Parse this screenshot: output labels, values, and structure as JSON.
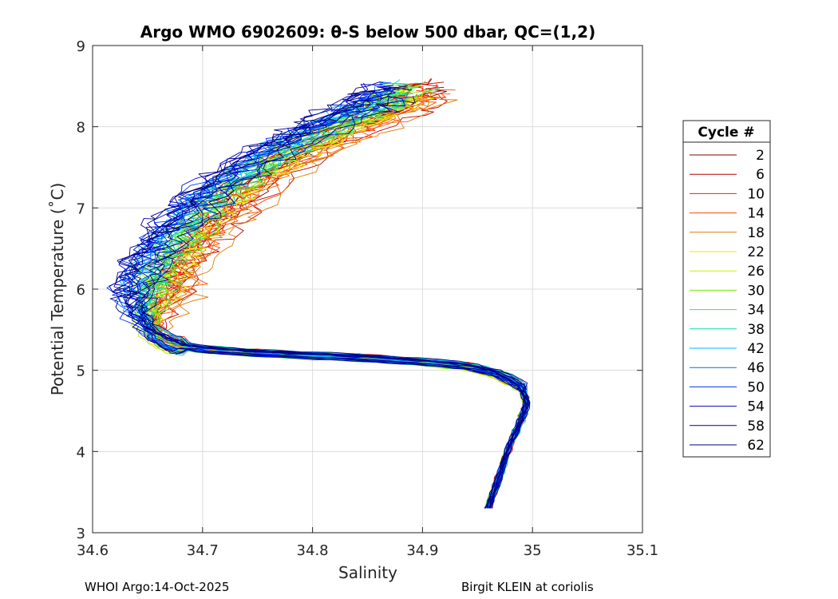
{
  "chart_data": {
    "type": "line",
    "title": "Argo WMO 6902609: θ-S below 500 dbar,  QC=(1,2)",
    "xlabel": "Salinity",
    "ylabel": "Potential Temperature (˚C)",
    "xlim": [
      34.6,
      35.1
    ],
    "ylim": [
      3,
      9
    ],
    "xticks": [
      "34.6",
      "34.7",
      "34.8",
      "34.9",
      "35",
      "35.1"
    ],
    "yticks": [
      "3",
      "4",
      "5",
      "6",
      "7",
      "8",
      "9"
    ],
    "grid": true,
    "legend": {
      "title": "Cycle #",
      "position": "right",
      "entries": [
        {
          "label": "2",
          "color": "#7f0000"
        },
        {
          "label": "6",
          "color": "#c00000"
        },
        {
          "label": "10",
          "color": "#ff1a00"
        },
        {
          "label": "14",
          "color": "#ff4a00"
        },
        {
          "label": "18",
          "color": "#e07800"
        },
        {
          "label": "22",
          "color": "#e8e800"
        },
        {
          "label": "26",
          "color": "#c4f000"
        },
        {
          "label": "30",
          "color": "#7ae600"
        },
        {
          "label": "34",
          "color": "#30e860"
        },
        {
          "label": "38",
          "color": "#00e0b0"
        },
        {
          "label": "42",
          "color": "#00b4ff"
        },
        {
          "label": "46",
          "color": "#0070ff"
        },
        {
          "label": "50",
          "color": "#0030ff"
        },
        {
          "label": "54",
          "color": "#0000d0"
        },
        {
          "label": "58",
          "color": "#000090"
        },
        {
          "label": "62",
          "color": "#00007a"
        }
      ]
    },
    "mean_profile": {
      "s": [
        34.96,
        34.97,
        34.98,
        34.99,
        34.995,
        34.99,
        34.97,
        34.94,
        34.9,
        34.85,
        34.8,
        34.74,
        34.7,
        34.67,
        34.655,
        34.65,
        34.655,
        34.665,
        34.68,
        34.7,
        34.725,
        34.76,
        34.8,
        34.84,
        34.87,
        34.89
      ],
      "t": [
        3.3,
        3.7,
        4.1,
        4.4,
        4.6,
        4.8,
        4.95,
        5.05,
        5.1,
        5.15,
        5.18,
        5.22,
        5.26,
        5.32,
        5.45,
        5.7,
        6.0,
        6.3,
        6.6,
        6.9,
        7.2,
        7.55,
        7.85,
        8.1,
        8.3,
        8.45
      ]
    }
  },
  "footer": {
    "left": "WHOI Argo:14-Oct-2025",
    "right": "Birgit KLEIN at coriolis"
  }
}
